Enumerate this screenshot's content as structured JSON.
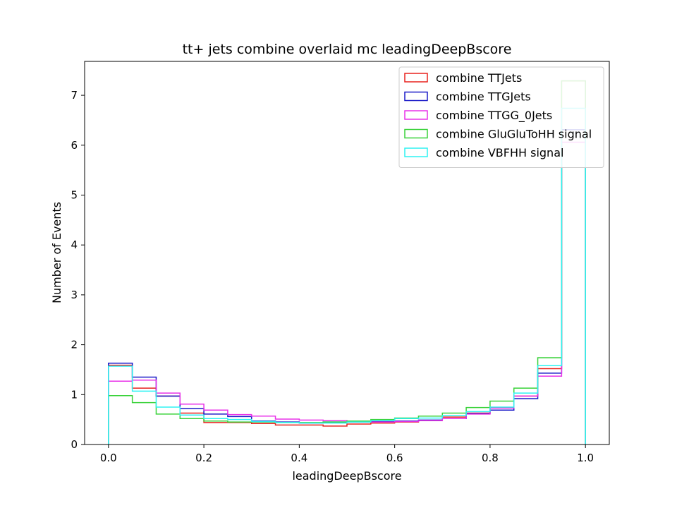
{
  "chart_data": {
    "type": "histogram-step",
    "title": "tt+ jets combine overlaid mc leadingDeepBscore",
    "xlabel": "leadingDeepBscore",
    "ylabel": "Number of Events",
    "xlim": [
      -0.05,
      1.05
    ],
    "ylim": [
      0,
      7.68
    ],
    "xticks": [
      0.0,
      0.2,
      0.4,
      0.6,
      0.8,
      1.0
    ],
    "xtick_labels": [
      "0.0",
      "0.2",
      "0.4",
      "0.6",
      "0.8",
      "1.0"
    ],
    "yticks": [
      0,
      1,
      2,
      3,
      4,
      5,
      6,
      7
    ],
    "ytick_labels": [
      "0",
      "1",
      "2",
      "3",
      "4",
      "5",
      "6",
      "7"
    ],
    "legend_position": "top-right",
    "bin_edges": [
      0.0,
      0.05,
      0.1,
      0.15,
      0.2,
      0.25,
      0.3,
      0.35,
      0.4,
      0.45,
      0.5,
      0.55,
      0.6,
      0.65,
      0.7,
      0.75,
      0.8,
      0.85,
      0.9,
      0.95,
      1.0
    ],
    "series": [
      {
        "name": "combine TTJets",
        "color": "#e8221e",
        "values": [
          1.59,
          1.13,
          0.97,
          0.63,
          0.44,
          0.44,
          0.42,
          0.39,
          0.39,
          0.37,
          0.41,
          0.43,
          0.45,
          0.48,
          0.55,
          0.63,
          0.74,
          0.97,
          1.52,
          7.29
        ]
      },
      {
        "name": "combine TTGJets",
        "color": "#1a1ac8",
        "values": [
          1.63,
          1.35,
          0.97,
          0.72,
          0.61,
          0.56,
          0.47,
          0.45,
          0.43,
          0.45,
          0.45,
          0.46,
          0.47,
          0.49,
          0.52,
          0.62,
          0.69,
          0.92,
          1.43,
          6.31
        ]
      },
      {
        "name": "combine TTGG_0Jets",
        "color": "#e832e8",
        "values": [
          1.27,
          1.29,
          1.03,
          0.81,
          0.69,
          0.6,
          0.57,
          0.51,
          0.49,
          0.48,
          0.46,
          0.45,
          0.46,
          0.48,
          0.52,
          0.61,
          0.73,
          0.97,
          1.37,
          6.06
        ]
      },
      {
        "name": "combine GluGluToHH signal",
        "color": "#3ad23a",
        "values": [
          0.98,
          0.84,
          0.61,
          0.52,
          0.47,
          0.45,
          0.45,
          0.44,
          0.44,
          0.45,
          0.47,
          0.5,
          0.53,
          0.57,
          0.63,
          0.74,
          0.87,
          1.13,
          1.74,
          7.29
        ]
      },
      {
        "name": "combine VBFHH signal",
        "color": "#2ef2f2",
        "values": [
          1.57,
          1.07,
          0.75,
          0.59,
          0.52,
          0.5,
          0.46,
          0.44,
          0.43,
          0.43,
          0.45,
          0.48,
          0.52,
          0.53,
          0.58,
          0.66,
          0.75,
          1.03,
          1.58,
          6.74
        ]
      }
    ]
  }
}
